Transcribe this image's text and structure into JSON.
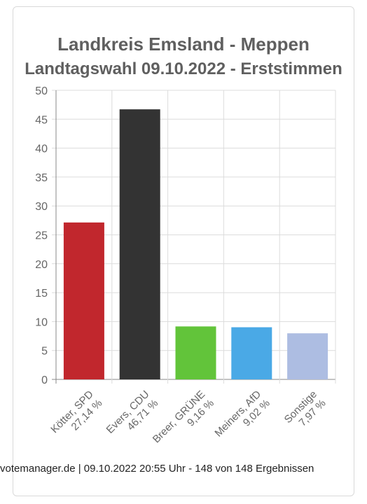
{
  "chart_data": {
    "type": "bar",
    "title": "Landkreis Emsland - Meppen",
    "subtitle": "Landtagswahl 09.10.2022  - Erststimmen",
    "categories": [
      {
        "name": "Kötter, SPD",
        "pct_label": "27,14 %"
      },
      {
        "name": "Evers, CDU",
        "pct_label": "46,71 %"
      },
      {
        "name": "Breer, GRÜNE",
        "pct_label": "9,16 %"
      },
      {
        "name": "Meiners, AfD",
        "pct_label": "9,02 %"
      },
      {
        "name": "Sonstige",
        "pct_label": "7,97 %"
      }
    ],
    "values": [
      27.14,
      46.71,
      9.16,
      9.02,
      7.97
    ],
    "colors": [
      "#c1272d",
      "#333333",
      "#62c43a",
      "#4aa9e6",
      "#adbde2"
    ],
    "ylim": [
      0,
      50
    ],
    "yticks": [
      "0",
      "5",
      "10",
      "15",
      "20",
      "25",
      "30",
      "35",
      "40",
      "45",
      "50"
    ],
    "grid": true,
    "xlabel": "",
    "ylabel": ""
  },
  "footer": "votemanager.de | 09.10.2022 20:55 Uhr - 148 von 148 Ergebnissen"
}
